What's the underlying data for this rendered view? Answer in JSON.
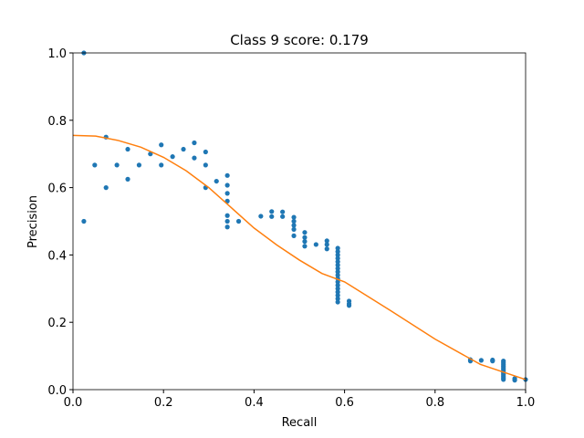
{
  "chart_data": {
    "type": "scatter",
    "title": "Class 9 score: 0.179",
    "xlabel": "Recall",
    "ylabel": "Precision",
    "xlim": [
      0,
      1
    ],
    "ylim": [
      0,
      1
    ],
    "xticks": [
      {
        "value": 0,
        "label": "0.0"
      },
      0.2,
      0.4,
      0.6,
      0.8,
      {
        "value": 1,
        "label": "1.0"
      }
    ],
    "yticks": [
      {
        "value": 0,
        "label": "0.0"
      },
      0.2,
      0.4,
      0.6,
      0.8,
      {
        "value": 1,
        "label": "1.0"
      }
    ],
    "series": [
      {
        "type": "scatter",
        "color": "#1f77b4",
        "x": [
          0.024,
          0.024,
          0.048,
          0.073,
          0.073,
          0.097,
          0.121,
          0.121,
          0.146,
          0.171,
          0.195,
          0.195,
          0.22,
          0.244,
          0.268,
          0.268,
          0.293,
          0.293,
          0.293,
          0.317,
          0.341,
          0.341,
          0.341,
          0.341,
          0.341,
          0.341,
          0.341,
          0.366,
          0.415,
          0.439,
          0.439,
          0.463,
          0.463,
          0.488,
          0.488,
          0.488,
          0.488,
          0.488,
          0.512,
          0.512,
          0.512,
          0.512,
          0.537,
          0.561,
          0.561,
          0.561,
          0.585,
          0.585,
          0.585,
          0.585,
          0.585,
          0.585,
          0.585,
          0.585,
          0.585,
          0.585,
          0.585,
          0.585,
          0.585,
          0.585,
          0.585,
          0.585,
          0.585,
          0.61,
          0.61,
          0.61,
          0.878,
          0.878,
          0.902,
          0.927,
          0.927,
          0.951,
          0.951,
          0.951,
          0.951,
          0.951,
          0.951,
          0.951,
          0.951,
          0.951,
          0.951,
          0.951,
          0.951,
          0.976,
          0.976,
          1.0
        ],
        "values": [
          1.0,
          0.5,
          0.667,
          0.75,
          0.6,
          0.667,
          0.714,
          0.625,
          0.667,
          0.7,
          0.727,
          0.667,
          0.692,
          0.714,
          0.733,
          0.688,
          0.706,
          0.667,
          0.6,
          0.619,
          0.636,
          0.607,
          0.583,
          0.56,
          0.517,
          0.5,
          0.483,
          0.5,
          0.515,
          0.529,
          0.514,
          0.528,
          0.514,
          0.512,
          0.5,
          0.488,
          0.476,
          0.457,
          0.467,
          0.452,
          0.44,
          0.426,
          0.431,
          0.442,
          0.431,
          0.418,
          0.42,
          0.41,
          0.4,
          0.39,
          0.38,
          0.37,
          0.36,
          0.35,
          0.34,
          0.33,
          0.32,
          0.31,
          0.3,
          0.29,
          0.28,
          0.27,
          0.26,
          0.263,
          0.255,
          0.25,
          0.089,
          0.085,
          0.087,
          0.088,
          0.085,
          0.085,
          0.08,
          0.075,
          0.07,
          0.065,
          0.06,
          0.055,
          0.05,
          0.045,
          0.04,
          0.035,
          0.03,
          0.033,
          0.028,
          0.03
        ]
      },
      {
        "type": "line",
        "color": "#ff7f0e",
        "x": [
          0,
          0.05,
          0.1,
          0.15,
          0.2,
          0.25,
          0.3,
          0.35,
          0.4,
          0.45,
          0.5,
          0.55,
          0.6,
          0.7,
          0.8,
          0.9,
          1.0
        ],
        "values": [
          0.755,
          0.753,
          0.74,
          0.72,
          0.69,
          0.65,
          0.6,
          0.54,
          0.48,
          0.43,
          0.385,
          0.345,
          0.32,
          0.236,
          0.15,
          0.075,
          0.03
        ]
      }
    ]
  }
}
